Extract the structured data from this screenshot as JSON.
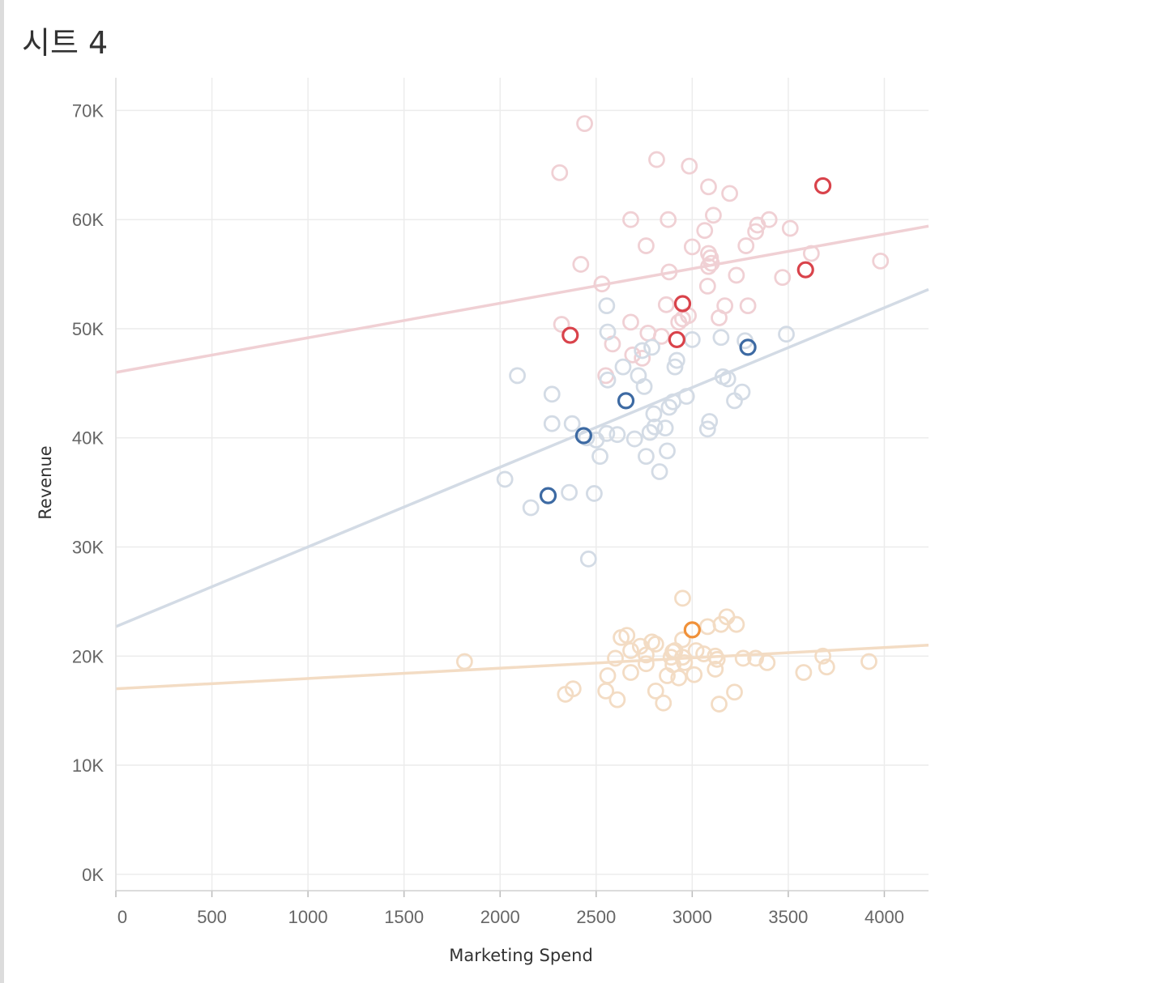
{
  "sheet": {
    "title": "시트 4"
  },
  "chart_data": {
    "type": "scatter",
    "title": "",
    "xlabel": "Marketing Spend",
    "ylabel": "Revenue",
    "xlim": [
      0,
      4230
    ],
    "ylim": [
      -1500,
      73000
    ],
    "x_ticks": [
      0,
      500,
      1000,
      1500,
      2000,
      2500,
      3000,
      3500,
      4000
    ],
    "x_tick_labels": [
      "0",
      "500",
      "1000",
      "1500",
      "2000",
      "2500",
      "3000",
      "3500",
      "4000"
    ],
    "y_ticks": [
      0,
      10000,
      20000,
      30000,
      40000,
      50000,
      60000,
      70000
    ],
    "y_tick_labels": [
      "0K",
      "10K",
      "20K",
      "30K",
      "40K",
      "50K",
      "60K",
      "70K"
    ],
    "grid": true,
    "marker": "open-circle",
    "series": [
      {
        "color": "#f0d0d4",
        "highlight_color": "#d9434b",
        "trend_line": {
          "x": [
            0,
            4230
          ],
          "y": [
            46000,
            59400
          ]
        },
        "points": [
          [
            2440,
            68800
          ],
          [
            2310,
            64300
          ],
          [
            2815,
            65500
          ],
          [
            2985,
            64900
          ],
          [
            3085,
            63000
          ],
          [
            3195,
            62400
          ],
          [
            2680,
            60000
          ],
          [
            2875,
            60000
          ],
          [
            3110,
            60400
          ],
          [
            3400,
            60000
          ],
          [
            3340,
            59500
          ],
          [
            3330,
            58900
          ],
          [
            3065,
            59000
          ],
          [
            3510,
            59200
          ],
          [
            2760,
            57600
          ],
          [
            3000,
            57500
          ],
          [
            3085,
            56900
          ],
          [
            3095,
            56500
          ],
          [
            3100,
            56000
          ],
          [
            3085,
            55700
          ],
          [
            3280,
            57600
          ],
          [
            3620,
            56900
          ],
          [
            3980,
            56200
          ],
          [
            2420,
            55900
          ],
          [
            2880,
            55200
          ],
          [
            3230,
            54900
          ],
          [
            3470,
            54700
          ],
          [
            2530,
            54100
          ],
          [
            3080,
            53900
          ],
          [
            2865,
            52200
          ],
          [
            3170,
            52100
          ],
          [
            3290,
            52100
          ],
          [
            2980,
            51200
          ],
          [
            3140,
            51000
          ],
          [
            2930,
            50600
          ],
          [
            2950,
            50900
          ],
          [
            2680,
            50600
          ],
          [
            2320,
            50400
          ],
          [
            2770,
            49600
          ],
          [
            2840,
            49300
          ],
          [
            2585,
            48600
          ],
          [
            2690,
            47600
          ],
          [
            2740,
            47300
          ],
          [
            2550,
            45700
          ]
        ],
        "highlighted": [
          [
            3680,
            63100
          ],
          [
            3590,
            55400
          ],
          [
            2950,
            52300
          ],
          [
            2365,
            49400
          ],
          [
            2920,
            49000
          ]
        ]
      },
      {
        "color": "#d3dbe5",
        "highlight_color": "#3d6aa3",
        "trend_line": {
          "x": [
            0,
            4230
          ],
          "y": [
            22700,
            53600
          ]
        },
        "points": [
          [
            2555,
            52100
          ],
          [
            2560,
            49700
          ],
          [
            3000,
            49000
          ],
          [
            3150,
            49200
          ],
          [
            3275,
            48900
          ],
          [
            3490,
            49500
          ],
          [
            2790,
            48300
          ],
          [
            2740,
            48000
          ],
          [
            2920,
            47100
          ],
          [
            2910,
            46500
          ],
          [
            2640,
            46500
          ],
          [
            2720,
            45700
          ],
          [
            2090,
            45700
          ],
          [
            2560,
            45300
          ],
          [
            3160,
            45600
          ],
          [
            3185,
            45400
          ],
          [
            2750,
            44700
          ],
          [
            3260,
            44200
          ],
          [
            3220,
            43400
          ],
          [
            2970,
            43800
          ],
          [
            2900,
            43300
          ],
          [
            2270,
            44000
          ],
          [
            2800,
            42200
          ],
          [
            2880,
            42800
          ],
          [
            3090,
            41500
          ],
          [
            3080,
            40800
          ],
          [
            2270,
            41300
          ],
          [
            2375,
            41300
          ],
          [
            2805,
            41000
          ],
          [
            2860,
            40900
          ],
          [
            2450,
            40000
          ],
          [
            2500,
            39800
          ],
          [
            2555,
            40400
          ],
          [
            2610,
            40300
          ],
          [
            2700,
            39900
          ],
          [
            2780,
            40500
          ],
          [
            2520,
            38300
          ],
          [
            2760,
            38300
          ],
          [
            2870,
            38800
          ],
          [
            2830,
            36900
          ],
          [
            2025,
            36200
          ],
          [
            2360,
            35000
          ],
          [
            2490,
            34900
          ],
          [
            2160,
            33600
          ],
          [
            2460,
            28900
          ]
        ],
        "highlighted": [
          [
            3290,
            48300
          ],
          [
            2655,
            43400
          ],
          [
            2435,
            40200
          ],
          [
            2250,
            34700
          ]
        ]
      },
      {
        "color": "#f3dcc4",
        "highlight_color": "#f0913a",
        "trend_line": {
          "x": [
            0,
            4230
          ],
          "y": [
            17000,
            21000
          ]
        },
        "points": [
          [
            2950,
            25300
          ],
          [
            3180,
            23600
          ],
          [
            3080,
            22700
          ],
          [
            3150,
            22900
          ],
          [
            3230,
            22900
          ],
          [
            2630,
            21700
          ],
          [
            2660,
            21900
          ],
          [
            2790,
            21300
          ],
          [
            2810,
            21100
          ],
          [
            2730,
            20900
          ],
          [
            2950,
            21500
          ],
          [
            2910,
            20500
          ],
          [
            3020,
            20500
          ],
          [
            2600,
            19800
          ],
          [
            2680,
            20500
          ],
          [
            2760,
            20100
          ],
          [
            2890,
            19900
          ],
          [
            2900,
            20400
          ],
          [
            2950,
            19900
          ],
          [
            3060,
            20200
          ],
          [
            3120,
            20000
          ],
          [
            3130,
            19700
          ],
          [
            3265,
            19800
          ],
          [
            3330,
            19800
          ],
          [
            3390,
            19400
          ],
          [
            3680,
            20000
          ],
          [
            3700,
            19000
          ],
          [
            3920,
            19500
          ],
          [
            1815,
            19500
          ],
          [
            2760,
            19300
          ],
          [
            2900,
            19200
          ],
          [
            2960,
            19400
          ],
          [
            3120,
            18800
          ],
          [
            2560,
            18200
          ],
          [
            2680,
            18500
          ],
          [
            2870,
            18200
          ],
          [
            2930,
            18000
          ],
          [
            3010,
            18300
          ],
          [
            3580,
            18500
          ],
          [
            2380,
            17000
          ],
          [
            2340,
            16500
          ],
          [
            2550,
            16800
          ],
          [
            2610,
            16000
          ],
          [
            2810,
            16800
          ],
          [
            2850,
            15700
          ],
          [
            3140,
            15600
          ],
          [
            3220,
            16700
          ]
        ],
        "highlighted": [
          [
            3000,
            22400
          ]
        ]
      }
    ]
  }
}
